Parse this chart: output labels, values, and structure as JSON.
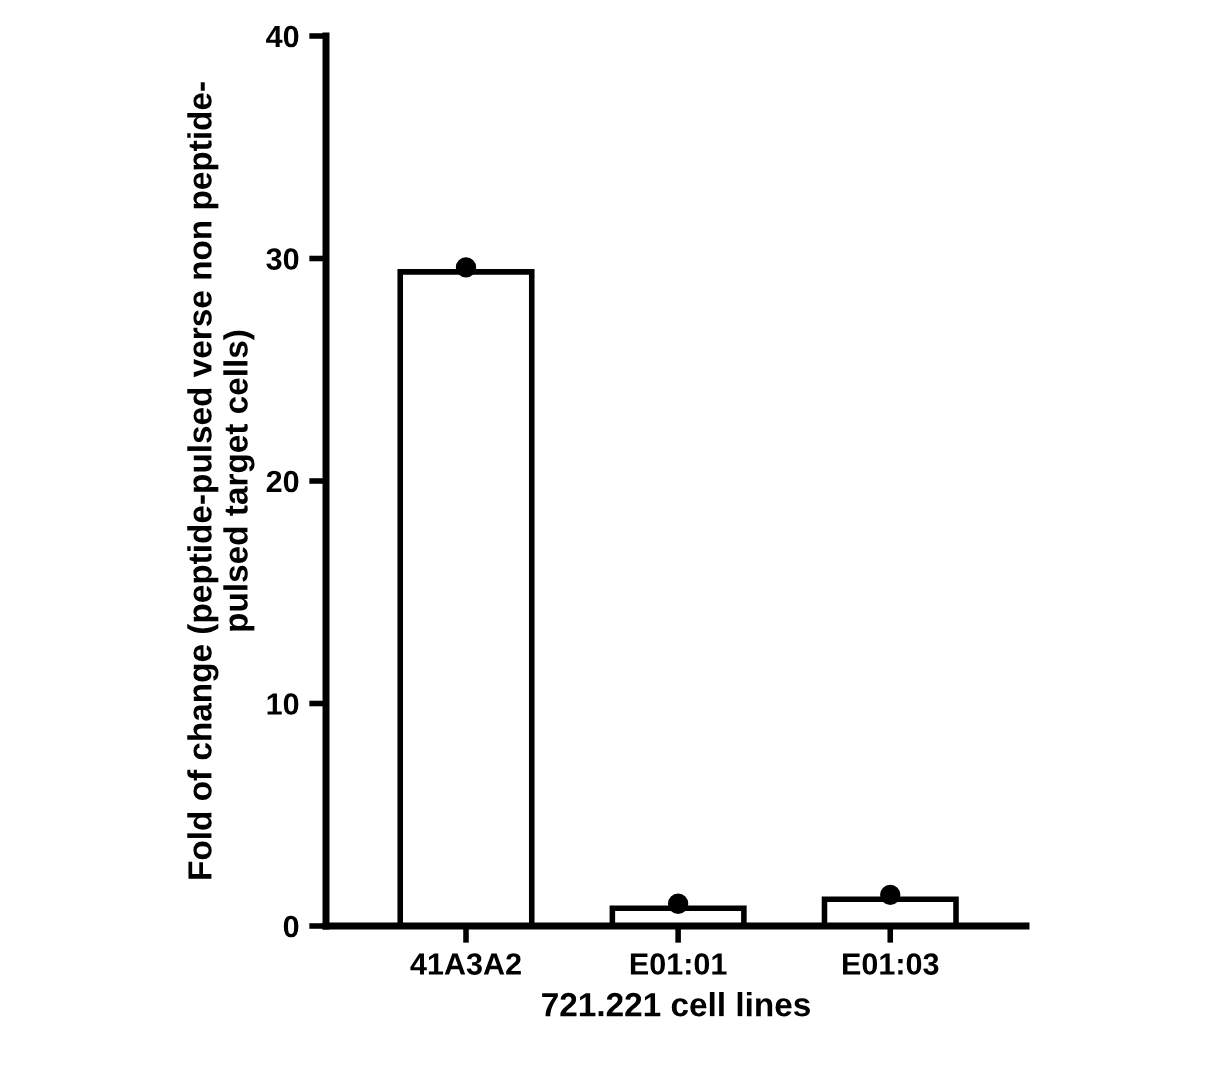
{
  "chart_data": {
    "type": "bar",
    "xlabel": "721.221 cell lines",
    "ylabel": "Fold of change (peptide-pulsed verse non peptide-\npulsed target cells)",
    "categories": [
      "41A3A2",
      "E01:01",
      "E01:03"
    ],
    "series": [
      {
        "color": "#ffffff",
        "values": [
          29.4,
          0.8,
          1.2
        ]
      },
      {
        "type": "scatter",
        "color": "#000000",
        "x": [
          "41A3A2",
          "E01:01",
          "E01:03"
        ],
        "values": [
          29.6,
          1.0,
          1.4
        ],
        "marker": "circle"
      }
    ],
    "ylim": [
      0,
      40
    ],
    "yticks": [
      0,
      10,
      20,
      30,
      40
    ],
    "grid": false,
    "legend": false
  }
}
